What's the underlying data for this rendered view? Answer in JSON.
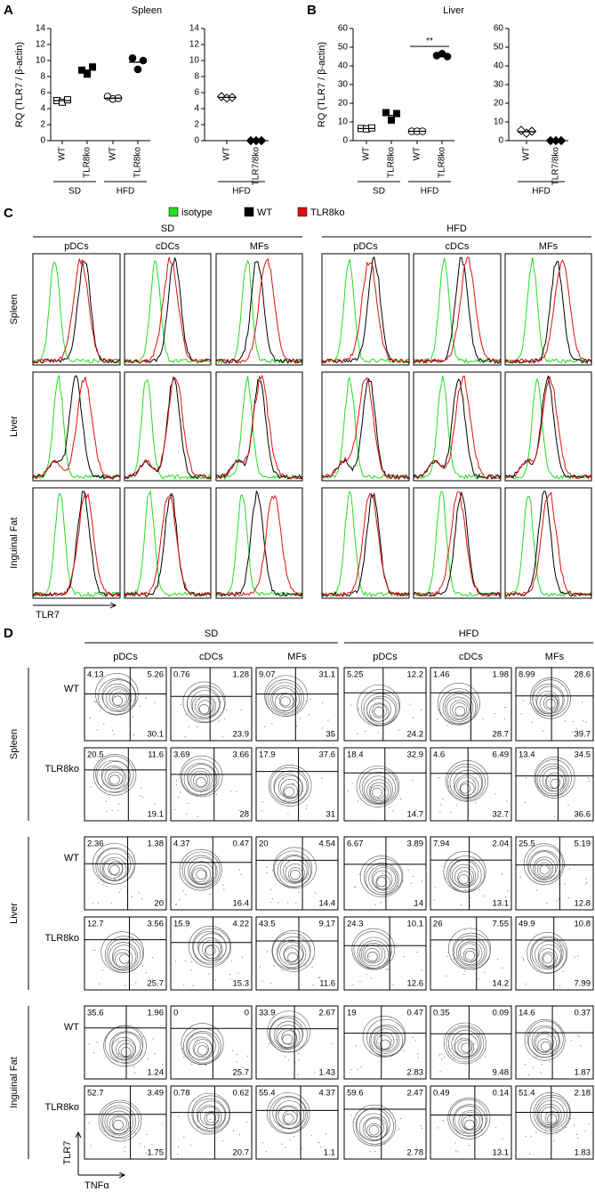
{
  "panel_labels": [
    "A",
    "B",
    "C",
    "D"
  ],
  "chart_data": [
    {
      "type": "dot",
      "title": "Spleen",
      "y_label": "RQ (TLR7 / β-actin)",
      "ylim": [
        0,
        14
      ],
      "yticks": [
        0,
        2,
        4,
        6,
        8,
        10,
        12,
        14
      ],
      "groups": [
        {
          "name": "SD",
          "categories": [
            "WT",
            "TLR8ko"
          ],
          "markers": [
            "open-square",
            "filled-square"
          ],
          "points": [
            [
              5.0,
              4.8,
              5.1
            ],
            [
              8.8,
              8.3,
              9.2
            ]
          ],
          "means": [
            5.0,
            8.8
          ]
        },
        {
          "name": "HFD",
          "categories": [
            "WT",
            "TLR8ko"
          ],
          "markers": [
            "open-circle",
            "filled-circle"
          ],
          "points": [
            [
              5.5,
              5.2,
              5.3
            ],
            [
              10.3,
              8.9,
              10.0
            ]
          ],
          "means": [
            5.3,
            9.8
          ]
        }
      ]
    },
    {
      "type": "dot",
      "ylim": [
        0,
        14
      ],
      "yticks": [
        0,
        2,
        4,
        6,
        8,
        10,
        12,
        14
      ],
      "groups": [
        {
          "name": "HFD",
          "categories": [
            "WT",
            "TLR7/8ko"
          ],
          "markers": [
            "open-diamond",
            "filled-diamond"
          ],
          "points": [
            [
              5.5,
              5.3,
              5.4
            ],
            [
              0,
              0,
              0
            ]
          ],
          "means": [
            5.4,
            0
          ]
        }
      ]
    },
    {
      "type": "dot",
      "title": "Liver",
      "y_label": "RQ (TLR7 / β-actin)",
      "ylim": [
        0,
        60
      ],
      "yticks": [
        0,
        10,
        20,
        30,
        40,
        50,
        60
      ],
      "annotation": "**",
      "groups": [
        {
          "name": "SD",
          "categories": [
            "WT",
            "TLR8ko"
          ],
          "markers": [
            "open-square",
            "filled-square"
          ],
          "points": [
            [
              6.5,
              6.3,
              6.8
            ],
            [
              15,
              11,
              14.5
            ]
          ],
          "means": [
            6.5,
            13.5
          ]
        },
        {
          "name": "HFD",
          "categories": [
            "WT",
            "TLR8ko"
          ],
          "markers": [
            "open-circle",
            "filled-circle"
          ],
          "points": [
            [
              5,
              5,
              5
            ],
            [
              45.5,
              46.5,
              45
            ]
          ],
          "means": [
            5,
            45.7
          ]
        }
      ]
    },
    {
      "type": "dot",
      "ylim": [
        0,
        60
      ],
      "yticks": [
        0,
        10,
        20,
        30,
        40,
        50,
        60
      ],
      "groups": [
        {
          "name": "HFD",
          "categories": [
            "WT",
            "TLR7/8ko"
          ],
          "markers": [
            "open-diamond",
            "filled-diamond"
          ],
          "points": [
            [
              5.5,
              4,
              5
            ],
            [
              0,
              0,
              0
            ]
          ],
          "means": [
            4.8,
            0
          ]
        }
      ]
    }
  ],
  "panel_c": {
    "legend": [
      {
        "name": "isotype",
        "color": "#22dd22"
      },
      {
        "name": "WT",
        "color": "#000000"
      },
      {
        "name": "TLR8ko",
        "color": "#e01010"
      }
    ],
    "diets": [
      "SD",
      "HFD"
    ],
    "cell_types": [
      "pDCs",
      "cDCs",
      "MFs"
    ],
    "tissues": [
      "Spleen",
      "Liver",
      "Inguinal Fat"
    ],
    "x_label": "TLR7"
  },
  "panel_d": {
    "diets": [
      "SD",
      "HFD"
    ],
    "cell_types": [
      "pDCs",
      "cDCs",
      "MFs"
    ],
    "tissues": [
      "Spleen",
      "Liver",
      "Inguinal Fat"
    ],
    "genotypes": [
      "WT",
      "TLR8ko"
    ],
    "y_label": "TLR7",
    "x_label": "TNFα",
    "quadrants": [
      [
        [
          [
            4.13,
            5.26,
            30.1
          ],
          [
            0.76,
            1.28,
            23.9
          ],
          [
            9.07,
            31.1,
            35
          ],
          [
            5.25,
            12.2,
            24.2
          ],
          [
            1.46,
            1.98,
            28.7
          ],
          [
            8.99,
            28.6,
            39.7
          ]
        ],
        [
          [
            20.5,
            11.6,
            19.1
          ],
          [
            3.69,
            3.66,
            28
          ],
          [
            17.9,
            37.6,
            31
          ],
          [
            18.4,
            32.9,
            14.7
          ],
          [
            4.6,
            6.49,
            32.7
          ],
          [
            13.4,
            34.5,
            36.6
          ]
        ]
      ],
      [
        [
          [
            2.36,
            1.38,
            20
          ],
          [
            4.37,
            0.47,
            16.4
          ],
          [
            20,
            4.54,
            14.4
          ],
          [
            6.67,
            3.89,
            14
          ],
          [
            7.94,
            2.04,
            13.1
          ],
          [
            25.5,
            5.19,
            12.8
          ]
        ],
        [
          [
            12.7,
            3.56,
            25.7
          ],
          [
            15.9,
            4.22,
            15.3
          ],
          [
            43.5,
            9.17,
            11.6
          ],
          [
            24.3,
            10.1,
            12.6
          ],
          [
            26,
            7.55,
            14.2
          ],
          [
            49.9,
            10.8,
            7.99
          ]
        ]
      ],
      [
        [
          [
            35.6,
            1.96,
            1.24
          ],
          [
            0,
            0,
            25.7
          ],
          [
            33.9,
            2.67,
            1.43
          ],
          [
            19,
            0.47,
            2.83
          ],
          [
            0.35,
            0.09,
            9.48
          ],
          [
            14.6,
            0.37,
            1.87
          ]
        ],
        [
          [
            52.7,
            3.49,
            1.75
          ],
          [
            0.78,
            0.62,
            20.7
          ],
          [
            55.4,
            4.37,
            1.1
          ],
          [
            59.6,
            2.47,
            2.78
          ],
          [
            0.49,
            0.14,
            13.1
          ],
          [
            51.4,
            2.18,
            1.83
          ]
        ]
      ]
    ]
  }
}
